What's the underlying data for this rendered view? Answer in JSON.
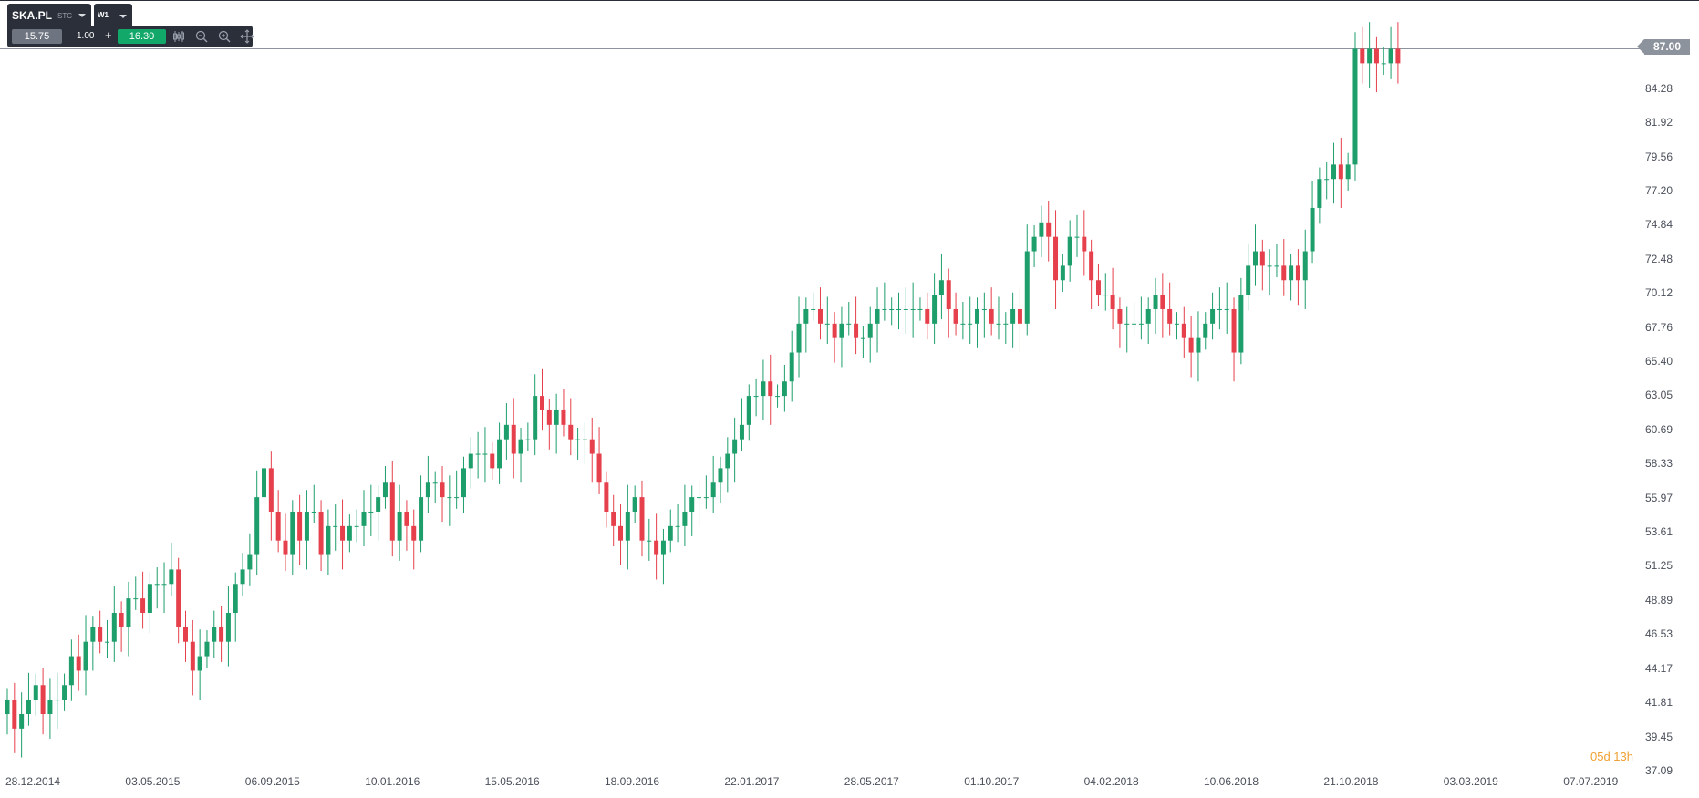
{
  "toolbar": {
    "symbol": "SKA.PL",
    "market": "STC",
    "timeframe": "W1",
    "sell_price": "15.75",
    "quantity": "1.00",
    "minus_label": "–",
    "plus_label": "+",
    "buy_price": "16.30",
    "icons": [
      "candlestick-icon",
      "zoom-out-icon",
      "zoom-in-icon",
      "move-icon"
    ]
  },
  "countdown": "05d 13h",
  "colors": {
    "up": "#1d9e6b",
    "down": "#e5404b",
    "axis_text": "#4a4f5a",
    "price_tag": "#8d939c",
    "countdown": "#f0a033",
    "toolbar_bg": "#2b2f3a",
    "buy": "#12a86a"
  },
  "chart_data": {
    "type": "candlestick",
    "current_price": 87.0,
    "current_price_label": "87.00",
    "ylim": [
      37.09,
      87.6
    ],
    "y_ticks": [
      "84.28",
      "81.92",
      "79.56",
      "77.20",
      "74.84",
      "72.48",
      "70.12",
      "67.76",
      "65.40",
      "63.05",
      "60.69",
      "58.33",
      "55.97",
      "53.61",
      "51.25",
      "48.89",
      "46.53",
      "44.17",
      "41.81",
      "39.45",
      "37.09"
    ],
    "x_ticks": [
      "28.12.2014",
      "03.05.2015",
      "06.09.2015",
      "10.01.2016",
      "15.05.2016",
      "18.09.2016",
      "22.01.2017",
      "28.05.2017",
      "01.10.2017",
      "04.02.2018",
      "10.06.2018",
      "21.10.2018",
      "03.03.2019",
      "07.07.2019"
    ],
    "grid": false,
    "closes": [
      42,
      40,
      41,
      42,
      43,
      41,
      42,
      42,
      43,
      45,
      44,
      46,
      47,
      46,
      46,
      48,
      47,
      49,
      49,
      48,
      50,
      50,
      50,
      51,
      47,
      46,
      44,
      45,
      46,
      47,
      46,
      48,
      50,
      51,
      52,
      56,
      58,
      55,
      53,
      52,
      55,
      53,
      55,
      55,
      52,
      54,
      54,
      53,
      54,
      54,
      55,
      55,
      56,
      57,
      53,
      55,
      54,
      53,
      56,
      57,
      57,
      56,
      56,
      56,
      58,
      59,
      59,
      59,
      58,
      60,
      61,
      59,
      60,
      60,
      63,
      62,
      61,
      62,
      61,
      60,
      60,
      60,
      59,
      57,
      55,
      54,
      53,
      55,
      56,
      53,
      53,
      52,
      53,
      54,
      54,
      55,
      56,
      56,
      56,
      57,
      58,
      59,
      60,
      61,
      63,
      63,
      64,
      63,
      63,
      64,
      66,
      68,
      69,
      69,
      68,
      68,
      67,
      68,
      68,
      67,
      67,
      68,
      69,
      69,
      69,
      69,
      69,
      69,
      69,
      68,
      70,
      71,
      69,
      68,
      68,
      68,
      69,
      69,
      68,
      68,
      68,
      69,
      68,
      73,
      74,
      75,
      74,
      71,
      72,
      74,
      74,
      73,
      71,
      70,
      70,
      69,
      68,
      68,
      68,
      68,
      69,
      70,
      69,
      68,
      68,
      67,
      66,
      67,
      68,
      69,
      69,
      69,
      66,
      70,
      72,
      73,
      72,
      72,
      72,
      71,
      72,
      71,
      73,
      76,
      78,
      78,
      79,
      78,
      79,
      87,
      86,
      87,
      86,
      86,
      87,
      86
    ]
  }
}
